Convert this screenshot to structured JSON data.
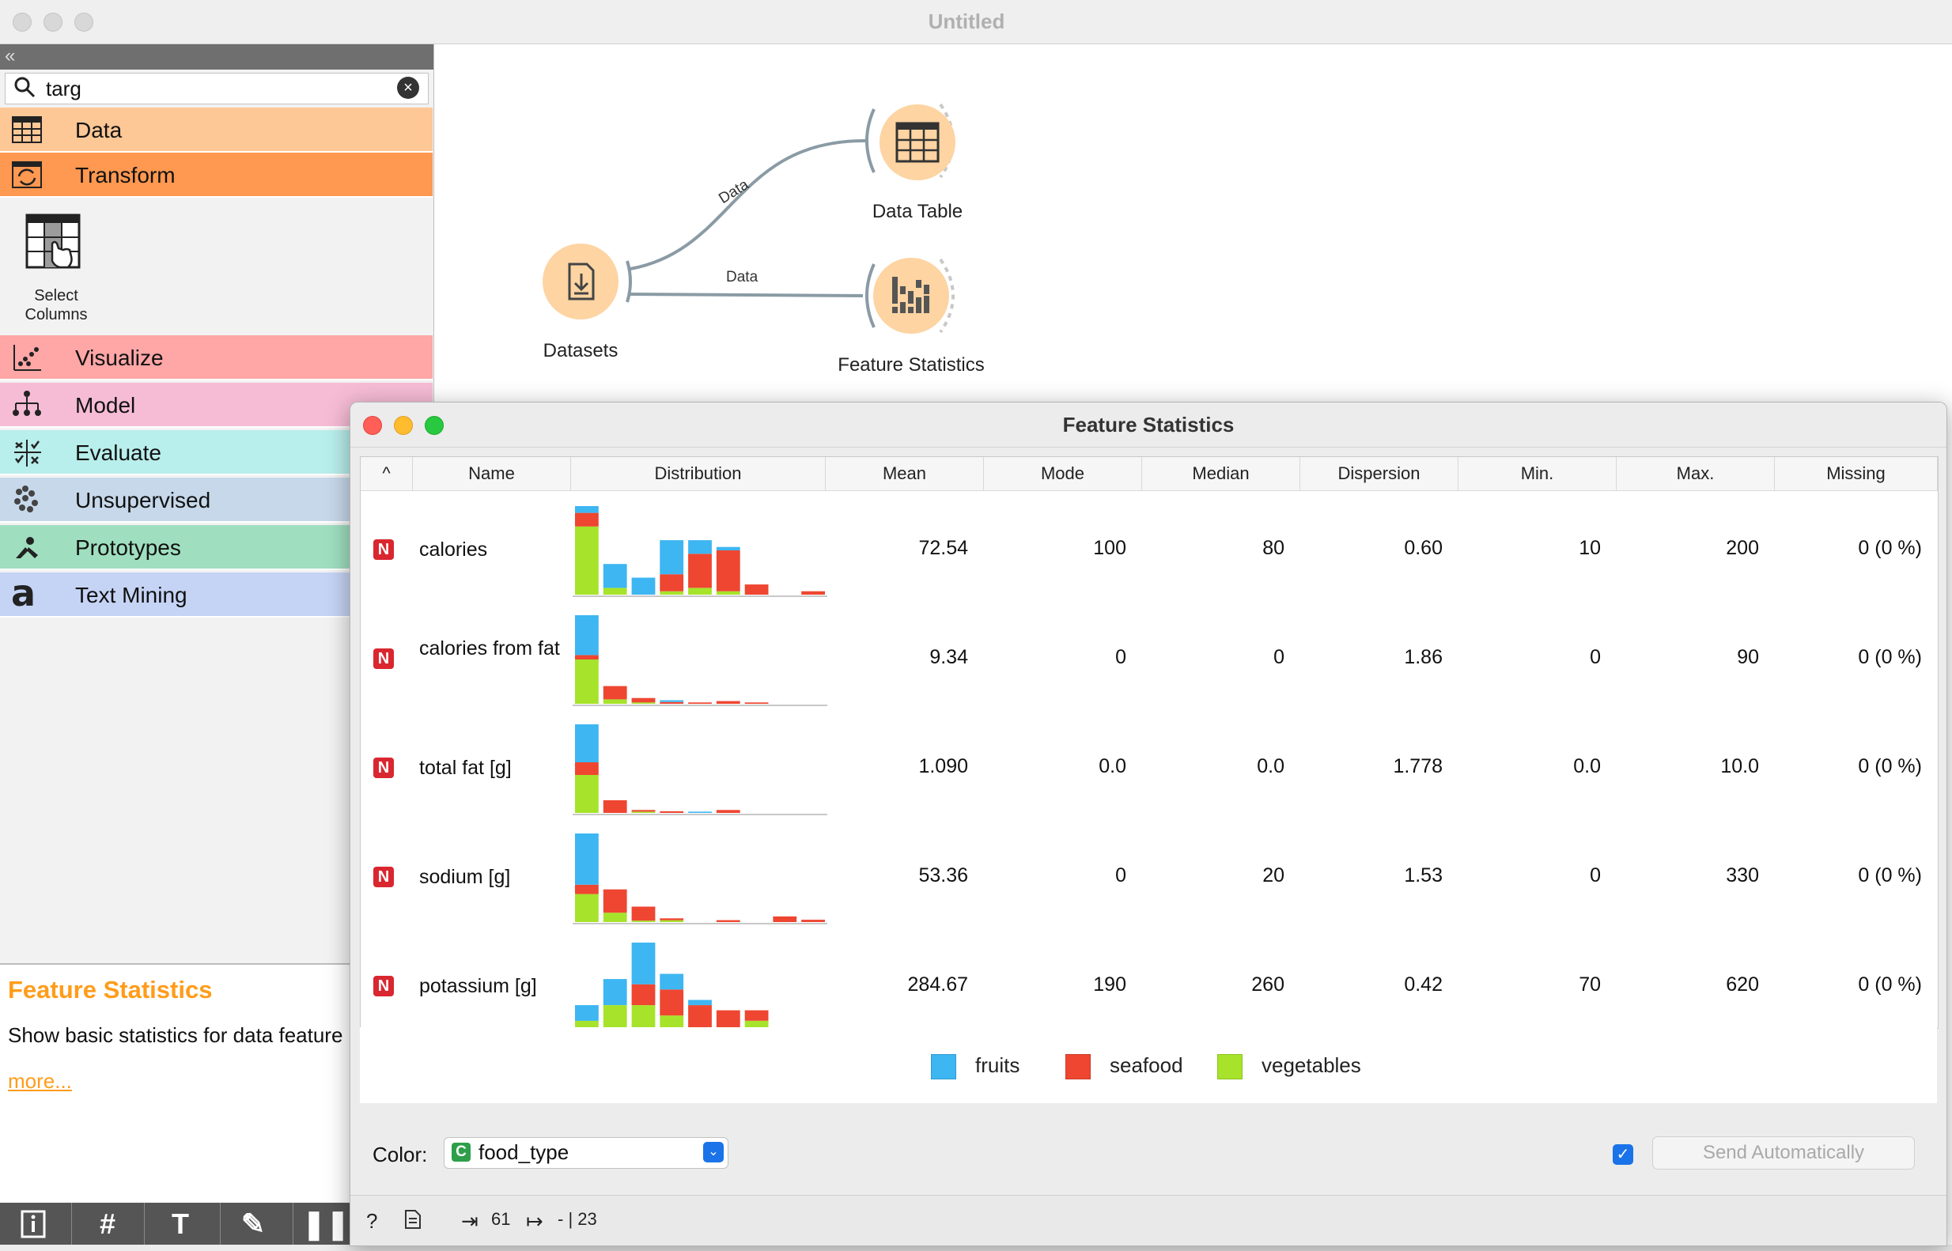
{
  "window": {
    "title": "Untitled"
  },
  "sidebar": {
    "search_value": "targ",
    "categories": [
      {
        "label": "Data",
        "color": "#fdc796"
      },
      {
        "label": "Transform",
        "color": "#ff9850"
      },
      {
        "label": "Visualize",
        "color": "#ffa6a6"
      },
      {
        "label": "Model",
        "color": "#f6bcd5"
      },
      {
        "label": "Evaluate",
        "color": "#b8eeeb"
      },
      {
        "label": "Unsupervised",
        "color": "#c6d8ea"
      },
      {
        "label": "Prototypes",
        "color": "#9fdfc0"
      },
      {
        "label": "Text Mining",
        "color": "#c5d4f5"
      }
    ],
    "widget": {
      "line1": "Select",
      "line2": "Columns"
    },
    "description": {
      "title": "Feature Statistics",
      "text": "Show basic statistics for data feature",
      "more": "more..."
    }
  },
  "canvas": {
    "nodes": {
      "datasets": "Datasets",
      "data_table": "Data Table",
      "feature_statistics": "Feature Statistics"
    },
    "links": {
      "to_table": "Data",
      "to_stats": "Data"
    }
  },
  "fs_window": {
    "title": "Feature Statistics",
    "sort_indicator": "^",
    "columns": [
      "Name",
      "Distribution",
      "Mean",
      "Mode",
      "Median",
      "Dispersion",
      "Min.",
      "Max.",
      "Missing"
    ],
    "type_badge": "N",
    "rows": [
      {
        "name": "calories",
        "mean": "72.54",
        "mode": "100",
        "median": "80",
        "dispersion": "0.60",
        "min": "10",
        "max": "200",
        "missing": "0 (0 %)",
        "bins": [
          [
            2,
            4,
            20
          ],
          [
            7,
            0,
            2
          ],
          [
            5,
            0,
            0
          ],
          [
            10,
            5,
            1
          ],
          [
            4,
            10,
            2
          ],
          [
            1,
            12,
            1
          ],
          [
            0,
            3,
            0
          ],
          [
            0,
            0,
            0
          ],
          [
            0,
            1,
            0
          ]
        ]
      },
      {
        "name": "calories from fat",
        "mean": "9.34",
        "mode": "0",
        "median": "0",
        "dispersion": "1.86",
        "min": "0",
        "max": "90",
        "missing": "0 (0 %)",
        "bins": [
          [
            9,
            1,
            10
          ],
          [
            0,
            3,
            1
          ],
          [
            0,
            1,
            0.3
          ],
          [
            0.4,
            0.4,
            0
          ],
          [
            0,
            0.3,
            0
          ],
          [
            0,
            0.6,
            0
          ],
          [
            0,
            0.3,
            0
          ],
          [
            0,
            0,
            0
          ],
          [
            0,
            0,
            0
          ]
        ]
      },
      {
        "name": "total fat [g]",
        "mean": "1.090",
        "mode": "0.0",
        "median": "0.0",
        "dispersion": "1.778",
        "min": "0.0",
        "max": "10.0",
        "missing": "0 (0 %)",
        "bins": [
          [
            9,
            3,
            9
          ],
          [
            0,
            3,
            0
          ],
          [
            0,
            0.4,
            0.3
          ],
          [
            0,
            0.4,
            0
          ],
          [
            0.3,
            0,
            0
          ],
          [
            0,
            0.7,
            0
          ],
          [
            0,
            0,
            0
          ],
          [
            0,
            0,
            0
          ],
          [
            0,
            0,
            0
          ]
        ]
      },
      {
        "name": "sodium [g]",
        "mean": "53.36",
        "mode": "0",
        "median": "20",
        "dispersion": "1.53",
        "min": "0",
        "max": "330",
        "missing": "0 (0 %)",
        "bins": [
          [
            11,
            2,
            6
          ],
          [
            0,
            5,
            2
          ],
          [
            0,
            3,
            0.3
          ],
          [
            0,
            0.4,
            0.4
          ],
          [
            0,
            0,
            0
          ],
          [
            0,
            0.4,
            0
          ],
          [
            0,
            0,
            0
          ],
          [
            0,
            1.2,
            0
          ],
          [
            0,
            0.5,
            0
          ]
        ]
      },
      {
        "name": "potassium [g]",
        "mean": "284.67",
        "mode": "190",
        "median": "260",
        "dispersion": "0.42",
        "min": "70",
        "max": "620",
        "missing": "0 (0 %)",
        "bins": [
          [
            3,
            0,
            2
          ],
          [
            5,
            0,
            5
          ],
          [
            8,
            4,
            5
          ],
          [
            3,
            5,
            3
          ],
          [
            1,
            5,
            0
          ],
          [
            0,
            4,
            0
          ],
          [
            0,
            2,
            2
          ],
          [
            0,
            0,
            0
          ],
          [
            0,
            0,
            0
          ]
        ]
      }
    ],
    "legend": [
      {
        "label": "fruits",
        "color": "#3db6f2"
      },
      {
        "label": "seafood",
        "color": "#ee4631"
      },
      {
        "label": "vegetables",
        "color": "#a6e32a"
      }
    ],
    "color_label": "Color:",
    "color_badge": "C",
    "color_value": "food_type",
    "send_label": "Send Automatically",
    "status": {
      "in_count": "61",
      "out_count": "- | 23"
    }
  }
}
